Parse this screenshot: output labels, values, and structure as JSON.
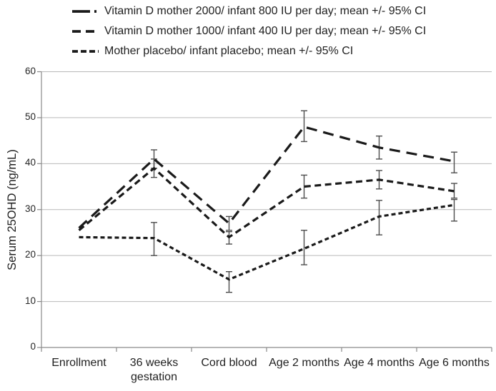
{
  "chart_data": {
    "type": "line",
    "title": "",
    "xlabel": "",
    "ylabel": "Serum 25OHD (ng/mL)",
    "ylim": [
      0,
      60
    ],
    "y_ticks": [
      0,
      10,
      20,
      30,
      40,
      50,
      60
    ],
    "grid": "horizontal",
    "legend_position": "top-left",
    "categories": [
      "Enrollment",
      "36 weeks gestation",
      "Cord blood",
      "Age 2 months",
      "Age 4 months",
      "Age 6 months"
    ],
    "series": [
      {
        "name": "Vitamin D mother 2000/ infant 800 IU per day; mean +/- 95% CI",
        "dash_style": "long-dash-dot",
        "color": "#1a1a1a",
        "values": [
          26,
          41,
          27,
          48,
          43.5,
          40.5
        ],
        "ci_low": [
          null,
          39,
          25.5,
          44.8,
          41,
          38
        ],
        "ci_high": [
          null,
          43,
          28.5,
          51.5,
          46,
          42.5
        ]
      },
      {
        "name": "Vitamin D mother 1000/ infant 400 IU per day; mean +/- 95% CI",
        "dash_style": "medium-dash",
        "color": "#1a1a1a",
        "values": [
          25.5,
          39,
          24,
          35,
          36.5,
          34
        ],
        "ci_low": [
          null,
          37,
          22.5,
          32.5,
          34.5,
          32.5
        ],
        "ci_high": [
          null,
          41,
          25.2,
          37.5,
          38.5,
          35.7
        ]
      },
      {
        "name": "Mother placebo/ infant placebo; mean +/- 95% CI",
        "dash_style": "short-dash",
        "color": "#1a1a1a",
        "values": [
          24,
          23.8,
          14.8,
          21.5,
          28.5,
          31
        ],
        "ci_low": [
          null,
          20,
          12,
          18,
          24.5,
          27.5
        ],
        "ci_high": [
          null,
          27.2,
          16.5,
          25.5,
          32,
          32.2
        ]
      }
    ],
    "error_bar_color": "#4d4d4d",
    "gridline_color": "#b9b9b9",
    "axis_color": "#8a8a8a"
  }
}
